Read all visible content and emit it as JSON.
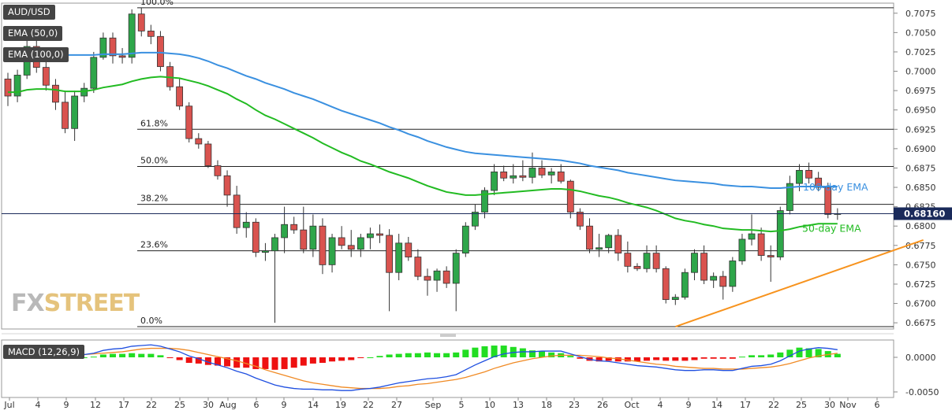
{
  "labels": {
    "pair": "AUD/USD",
    "ema50": "EMA (50,0)",
    "ema100": "EMA (100,0)",
    "macd": "MACD (12,26,9)"
  },
  "logo": {
    "part1": "FX",
    "part2": "STREET"
  },
  "colors": {
    "bull": "#2ea64a",
    "bear": "#d9534f",
    "ema50": "#22bb22",
    "ema100": "#3a90e0",
    "trend": "#f7931e",
    "macd_line": "#1f4fe0",
    "signal_line": "#f08a24",
    "hist_pos": "#22dd22",
    "hist_neg": "#ee1111",
    "price_marker": "#1a2a5a"
  },
  "chart_data": [
    {
      "type": "candlestick",
      "title": "AUD/USD",
      "y_ticks": [
        "0.7075",
        "0.7050",
        "0.7025",
        "0.7000",
        "0.6975",
        "0.6950",
        "0.6925",
        "0.6900",
        "0.6875",
        "0.6850",
        "0.6825",
        "0.6800",
        "0.6775",
        "0.6750",
        "0.6725",
        "0.6700",
        "0.6675"
      ],
      "ylim": [
        0.6667,
        0.7088
      ],
      "x_ticks": [
        "Jul",
        "4",
        "9",
        "12",
        "17",
        "22",
        "25",
        "30",
        "Aug",
        "6",
        "9",
        "14",
        "19",
        "22",
        "27",
        "Sep",
        "5",
        "10",
        "13",
        "18",
        "23",
        "26",
        "Oct",
        "4",
        "9",
        "14",
        "17",
        "22",
        "25",
        "30",
        "Nov",
        "6"
      ],
      "current_price": "0.68160",
      "current_price_value": 0.6816,
      "fibonacci": [
        {
          "label": "100.0%",
          "value": 0.7082
        },
        {
          "label": "61.8%",
          "value": 0.6925
        },
        {
          "label": "50.0%",
          "value": 0.6877
        },
        {
          "label": "38.2%",
          "value": 0.6828
        },
        {
          "label": "23.6%",
          "value": 0.6768
        },
        {
          "label": "0.0%",
          "value": 0.667
        }
      ],
      "annotations": [
        {
          "text": "100-day EMA"
        },
        {
          "text": "50-day EMA"
        }
      ],
      "candles": [
        [
          0.699,
          0.6998,
          0.6955,
          0.6968
        ],
        [
          0.6968,
          0.7002,
          0.696,
          0.6995
        ],
        [
          0.6995,
          0.704,
          0.699,
          0.7032
        ],
        [
          0.7032,
          0.7045,
          0.6998,
          0.7005
        ],
        [
          0.7005,
          0.7012,
          0.6975,
          0.6982
        ],
        [
          0.6982,
          0.699,
          0.695,
          0.696
        ],
        [
          0.696,
          0.6975,
          0.692,
          0.6926
        ],
        [
          0.6926,
          0.6975,
          0.691,
          0.6968
        ],
        [
          0.6968,
          0.6985,
          0.696,
          0.6978
        ],
        [
          0.6978,
          0.7025,
          0.6972,
          0.7018
        ],
        [
          0.7018,
          0.705,
          0.7015,
          0.7043
        ],
        [
          0.7043,
          0.705,
          0.701,
          0.702
        ],
        [
          0.702,
          0.703,
          0.701,
          0.7018
        ],
        [
          0.7018,
          0.708,
          0.701,
          0.7074
        ],
        [
          0.7074,
          0.7082,
          0.7045,
          0.7052
        ],
        [
          0.7052,
          0.706,
          0.7035,
          0.7045
        ],
        [
          0.7045,
          0.7052,
          0.7,
          0.7006
        ],
        [
          0.7006,
          0.7012,
          0.6975,
          0.698
        ],
        [
          0.698,
          0.699,
          0.695,
          0.6955
        ],
        [
          0.6955,
          0.696,
          0.6908,
          0.6913
        ],
        [
          0.6913,
          0.692,
          0.69,
          0.6906
        ],
        [
          0.6906,
          0.691,
          0.6875,
          0.6878
        ],
        [
          0.6878,
          0.6885,
          0.686,
          0.6865
        ],
        [
          0.6865,
          0.6872,
          0.6825,
          0.684
        ],
        [
          0.684,
          0.6852,
          0.679,
          0.6798
        ],
        [
          0.6798,
          0.6818,
          0.6785,
          0.6805
        ],
        [
          0.6805,
          0.681,
          0.676,
          0.6766
        ],
        [
          0.6766,
          0.6778,
          0.6755,
          0.6768
        ],
        [
          0.6768,
          0.679,
          0.6675,
          0.6785
        ],
        [
          0.6785,
          0.6825,
          0.6765,
          0.6802
        ],
        [
          0.6802,
          0.6812,
          0.679,
          0.6795
        ],
        [
          0.6795,
          0.6825,
          0.6765,
          0.677
        ],
        [
          0.677,
          0.6815,
          0.676,
          0.68
        ],
        [
          0.68,
          0.681,
          0.6738,
          0.675
        ],
        [
          0.675,
          0.679,
          0.674,
          0.6785
        ],
        [
          0.6785,
          0.68,
          0.677,
          0.6775
        ],
        [
          0.6775,
          0.6795,
          0.676,
          0.677
        ],
        [
          0.677,
          0.679,
          0.676,
          0.6785
        ],
        [
          0.6785,
          0.6798,
          0.677,
          0.679
        ],
        [
          0.679,
          0.6802,
          0.6778,
          0.6788
        ],
        [
          0.6788,
          0.6796,
          0.669,
          0.674
        ],
        [
          0.674,
          0.679,
          0.673,
          0.6778
        ],
        [
          0.6778,
          0.6786,
          0.6755,
          0.676
        ],
        [
          0.676,
          0.677,
          0.673,
          0.6735
        ],
        [
          0.6735,
          0.6745,
          0.671,
          0.673
        ],
        [
          0.673,
          0.6745,
          0.6715,
          0.6742
        ],
        [
          0.6742,
          0.6748,
          0.672,
          0.6726
        ],
        [
          0.6726,
          0.677,
          0.669,
          0.6765
        ],
        [
          0.6765,
          0.6805,
          0.676,
          0.68
        ],
        [
          0.68,
          0.6828,
          0.6795,
          0.6818
        ],
        [
          0.6818,
          0.685,
          0.681,
          0.6846
        ],
        [
          0.6846,
          0.688,
          0.684,
          0.687
        ],
        [
          0.687,
          0.6878,
          0.6858,
          0.6862
        ],
        [
          0.6862,
          0.688,
          0.6855,
          0.6865
        ],
        [
          0.6865,
          0.6885,
          0.6858,
          0.6863
        ],
        [
          0.6863,
          0.6895,
          0.6855,
          0.6875
        ],
        [
          0.6875,
          0.6885,
          0.6862,
          0.6866
        ],
        [
          0.6866,
          0.6875,
          0.6855,
          0.687
        ],
        [
          0.687,
          0.688,
          0.6855,
          0.6858
        ],
        [
          0.6858,
          0.686,
          0.681,
          0.6818
        ],
        [
          0.6818,
          0.6823,
          0.6795,
          0.68
        ],
        [
          0.68,
          0.681,
          0.6765,
          0.677
        ],
        [
          0.677,
          0.679,
          0.676,
          0.6772
        ],
        [
          0.6772,
          0.679,
          0.6765,
          0.6788
        ],
        [
          0.6788,
          0.6796,
          0.6755,
          0.6765
        ],
        [
          0.6765,
          0.678,
          0.674,
          0.6748
        ],
        [
          0.6748,
          0.6752,
          0.6742,
          0.6745
        ],
        [
          0.6745,
          0.6775,
          0.674,
          0.6765
        ],
        [
          0.6765,
          0.6775,
          0.674,
          0.6745
        ],
        [
          0.6745,
          0.6748,
          0.67,
          0.6705
        ],
        [
          0.6705,
          0.6712,
          0.6698,
          0.6708
        ],
        [
          0.6708,
          0.6745,
          0.6705,
          0.674
        ],
        [
          0.674,
          0.677,
          0.673,
          0.6765
        ],
        [
          0.6765,
          0.6775,
          0.6725,
          0.673
        ],
        [
          0.673,
          0.674,
          0.672,
          0.6735
        ],
        [
          0.6735,
          0.6742,
          0.6705,
          0.6722
        ],
        [
          0.6722,
          0.676,
          0.6715,
          0.6755
        ],
        [
          0.6755,
          0.679,
          0.675,
          0.6783
        ],
        [
          0.6783,
          0.6815,
          0.6775,
          0.679
        ],
        [
          0.679,
          0.6798,
          0.6755,
          0.6762
        ],
        [
          0.6762,
          0.6775,
          0.6728,
          0.676
        ],
        [
          0.676,
          0.6825,
          0.6756,
          0.682
        ],
        [
          0.682,
          0.6865,
          0.6815,
          0.6855
        ],
        [
          0.6855,
          0.688,
          0.6845,
          0.6872
        ],
        [
          0.6872,
          0.6882,
          0.6855,
          0.6862
        ],
        [
          0.6862,
          0.687,
          0.6845,
          0.685
        ],
        [
          0.685,
          0.6856,
          0.681,
          0.6815
        ],
        [
          0.6815,
          0.6823,
          0.6808,
          0.6816
        ]
      ],
      "ema50": [
        0.6973,
        0.6973,
        0.6976,
        0.6977,
        0.6977,
        0.6976,
        0.6974,
        0.6974,
        0.6974,
        0.6976,
        0.6979,
        0.6981,
        0.6983,
        0.6987,
        0.699,
        0.6992,
        0.6993,
        0.6992,
        0.6991,
        0.6988,
        0.6985,
        0.6981,
        0.6976,
        0.6971,
        0.6964,
        0.6958,
        0.695,
        0.6943,
        0.6938,
        0.6932,
        0.6926,
        0.692,
        0.6914,
        0.6907,
        0.6901,
        0.6895,
        0.689,
        0.6884,
        0.688,
        0.6875,
        0.687,
        0.6866,
        0.6862,
        0.6857,
        0.6852,
        0.6848,
        0.6844,
        0.6842,
        0.684,
        0.684,
        0.6841,
        0.6842,
        0.6843,
        0.6844,
        0.6845,
        0.6846,
        0.6847,
        0.6848,
        0.6848,
        0.6847,
        0.6845,
        0.6842,
        0.6839,
        0.6837,
        0.6834,
        0.683,
        0.6827,
        0.6824,
        0.682,
        0.6815,
        0.681,
        0.6807,
        0.6805,
        0.6802,
        0.68,
        0.6797,
        0.6796,
        0.6795,
        0.6795,
        0.6794,
        0.6793,
        0.6794,
        0.6796,
        0.6799,
        0.6801,
        0.6803,
        0.6803,
        0.6803
      ],
      "ema100": [
        0.702,
        0.7021,
        0.7021,
        0.7022,
        0.7022,
        0.7022,
        0.7021,
        0.7021,
        0.7021,
        0.7021,
        0.7022,
        0.7022,
        0.7022,
        0.7023,
        0.7024,
        0.7024,
        0.7024,
        0.7023,
        0.7022,
        0.702,
        0.7017,
        0.7013,
        0.7008,
        0.7004,
        0.6999,
        0.6994,
        0.699,
        0.6985,
        0.6981,
        0.6977,
        0.6972,
        0.6968,
        0.6964,
        0.6959,
        0.6954,
        0.6949,
        0.6945,
        0.6941,
        0.6937,
        0.6933,
        0.6928,
        0.6924,
        0.6919,
        0.6915,
        0.691,
        0.6906,
        0.6902,
        0.6899,
        0.6896,
        0.6894,
        0.6893,
        0.6892,
        0.6891,
        0.689,
        0.6889,
        0.6888,
        0.6887,
        0.6886,
        0.6885,
        0.6883,
        0.6881,
        0.6878,
        0.6876,
        0.6874,
        0.6872,
        0.6869,
        0.6867,
        0.6865,
        0.6863,
        0.6861,
        0.6859,
        0.6858,
        0.6857,
        0.6856,
        0.6855,
        0.6853,
        0.6852,
        0.6851,
        0.6851,
        0.685,
        0.6849,
        0.6849,
        0.685,
        0.6851,
        0.6851,
        0.6851,
        0.6851,
        0.6851
      ],
      "trendline": {
        "start_index": 70,
        "start_value": 0.667,
        "end_index": 96,
        "end_value": 0.6782
      }
    },
    {
      "type": "macd",
      "title": "MACD (12,26,9)",
      "y_ticks": [
        "0.0000",
        "-0.0050"
      ],
      "ylim": [
        -0.0058,
        0.0025
      ],
      "macd": [
        0.0003,
        0.0004,
        0.0006,
        0.0007,
        0.0007,
        0.0006,
        0.0004,
        0.0003,
        0.0004,
        0.0006,
        0.001,
        0.0012,
        0.0013,
        0.0016,
        0.0017,
        0.0018,
        0.0016,
        0.0012,
        0.0008,
        0.0002,
        -0.0002,
        -0.0007,
        -0.0011,
        -0.0015,
        -0.002,
        -0.0024,
        -0.003,
        -0.0035,
        -0.004,
        -0.0043,
        -0.0045,
        -0.0046,
        -0.0046,
        -0.0047,
        -0.0047,
        -0.0048,
        -0.0048,
        -0.0046,
        -0.0045,
        -0.0043,
        -0.004,
        -0.0037,
        -0.0035,
        -0.0033,
        -0.0031,
        -0.003,
        -0.0028,
        -0.0025,
        -0.0018,
        -0.0011,
        -0.0005,
        0.0001,
        0.0005,
        0.0007,
        0.0008,
        0.0008,
        0.0009,
        0.0009,
        0.0009,
        0.0005,
        0.0001,
        -0.0003,
        -0.0005,
        -0.0006,
        -0.0008,
        -0.001,
        -0.0012,
        -0.0013,
        -0.0014,
        -0.0016,
        -0.0018,
        -0.0019,
        -0.0019,
        -0.0018,
        -0.0018,
        -0.0019,
        -0.0019,
        -0.0016,
        -0.0013,
        -0.0012,
        -0.001,
        -0.0005,
        0.0002,
        0.0009,
        0.0012,
        0.0014,
        0.0013,
        0.0011
      ],
      "signal": [
        0.0001,
        0.0002,
        0.0003,
        0.0004,
        0.0005,
        0.0005,
        0.0005,
        0.0004,
        0.0004,
        0.0005,
        0.0006,
        0.0007,
        0.0008,
        0.001,
        0.0012,
        0.0013,
        0.0013,
        0.0013,
        0.0012,
        0.001,
        0.0007,
        0.0004,
        0.0001,
        -0.0002,
        -0.0005,
        -0.0009,
        -0.0013,
        -0.0018,
        -0.0022,
        -0.0026,
        -0.003,
        -0.0034,
        -0.0037,
        -0.0039,
        -0.0041,
        -0.0043,
        -0.0044,
        -0.0045,
        -0.0045,
        -0.0045,
        -0.0044,
        -0.0042,
        -0.0041,
        -0.0039,
        -0.0038,
        -0.0036,
        -0.0034,
        -0.0032,
        -0.0029,
        -0.0025,
        -0.0021,
        -0.0016,
        -0.0012,
        -0.0008,
        -0.0005,
        -0.0002,
        0.0,
        0.0002,
        0.0003,
        0.0003,
        0.0003,
        0.0002,
        0.0001,
        -0.0001,
        -0.0002,
        -0.0004,
        -0.0006,
        -0.0008,
        -0.001,
        -0.0011,
        -0.0013,
        -0.0014,
        -0.0015,
        -0.0016,
        -0.0016,
        -0.0017,
        -0.0017,
        -0.0017,
        -0.0016,
        -0.0015,
        -0.0014,
        -0.0012,
        -0.0009,
        -0.0005,
        -0.0001,
        0.0002,
        0.0004,
        0.0006
      ]
    }
  ]
}
